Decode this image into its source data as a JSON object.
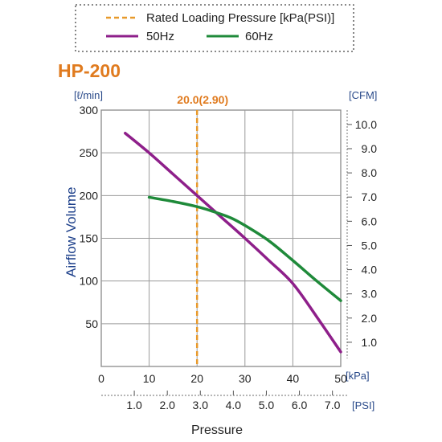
{
  "legend": {
    "items": [
      {
        "label": "Rated Loading Pressure [kPa(PSI)]",
        "color": "#e89a2c",
        "style": "dashed"
      },
      {
        "label": "50Hz",
        "color": "#8e1f8a",
        "style": "solid"
      },
      {
        "label": "60Hz",
        "color": "#1f8a3a",
        "style": "solid"
      }
    ]
  },
  "chart_data": {
    "type": "line",
    "title": "HP-200",
    "ylabel": "Airflow Volume",
    "xlabel": "Pressure",
    "left_unit": "[ℓ/min]",
    "right_unit": "[CFM]",
    "kpa_unit": "[kPa]",
    "psi_unit": "[PSI]",
    "xlim": [
      0,
      50
    ],
    "ylim": [
      0,
      300
    ],
    "grid": true,
    "x_ticks": [
      "0",
      "10",
      "20",
      "30",
      "40",
      "50"
    ],
    "x_tick_values": [
      0,
      10,
      20,
      30,
      40,
      50
    ],
    "y_ticks": [
      "50",
      "100",
      "150",
      "200",
      "250",
      "300"
    ],
    "y_tick_values": [
      50,
      100,
      150,
      200,
      250,
      300
    ],
    "psi_ticks": [
      "1.0",
      "2.0",
      "3.0",
      "4.0",
      "5.0",
      "6.0",
      "7.0"
    ],
    "psi_tick_values": [
      1.0,
      2.0,
      3.0,
      4.0,
      5.0,
      6.0,
      7.0
    ],
    "cfm_ticks": [
      "1.0",
      "2.0",
      "3.0",
      "4.0",
      "5.0",
      "6.0",
      "7.0",
      "8.0",
      "9.0",
      "10.0"
    ],
    "cfm_tick_values": [
      1.0,
      2.0,
      3.0,
      4.0,
      5.0,
      6.0,
      7.0,
      8.0,
      9.0,
      10.0
    ],
    "rated_pressure": {
      "x": 20,
      "label": "20.0(2.90)",
      "color": "#e89a2c"
    },
    "series": [
      {
        "name": "50Hz",
        "color": "#8e1f8a",
        "x": [
          5,
          10,
          15,
          20,
          25,
          30,
          35,
          40,
          45,
          50
        ],
        "y": [
          273,
          250,
          225,
          200,
          175,
          150,
          124,
          97,
          58,
          17
        ]
      },
      {
        "name": "60Hz",
        "color": "#1f8a3a",
        "x": [
          10,
          15,
          20,
          23,
          27,
          30,
          35,
          40,
          45,
          50
        ],
        "y": [
          198,
          193,
          187,
          182,
          174,
          165,
          147,
          124,
          100,
          77
        ]
      }
    ]
  }
}
